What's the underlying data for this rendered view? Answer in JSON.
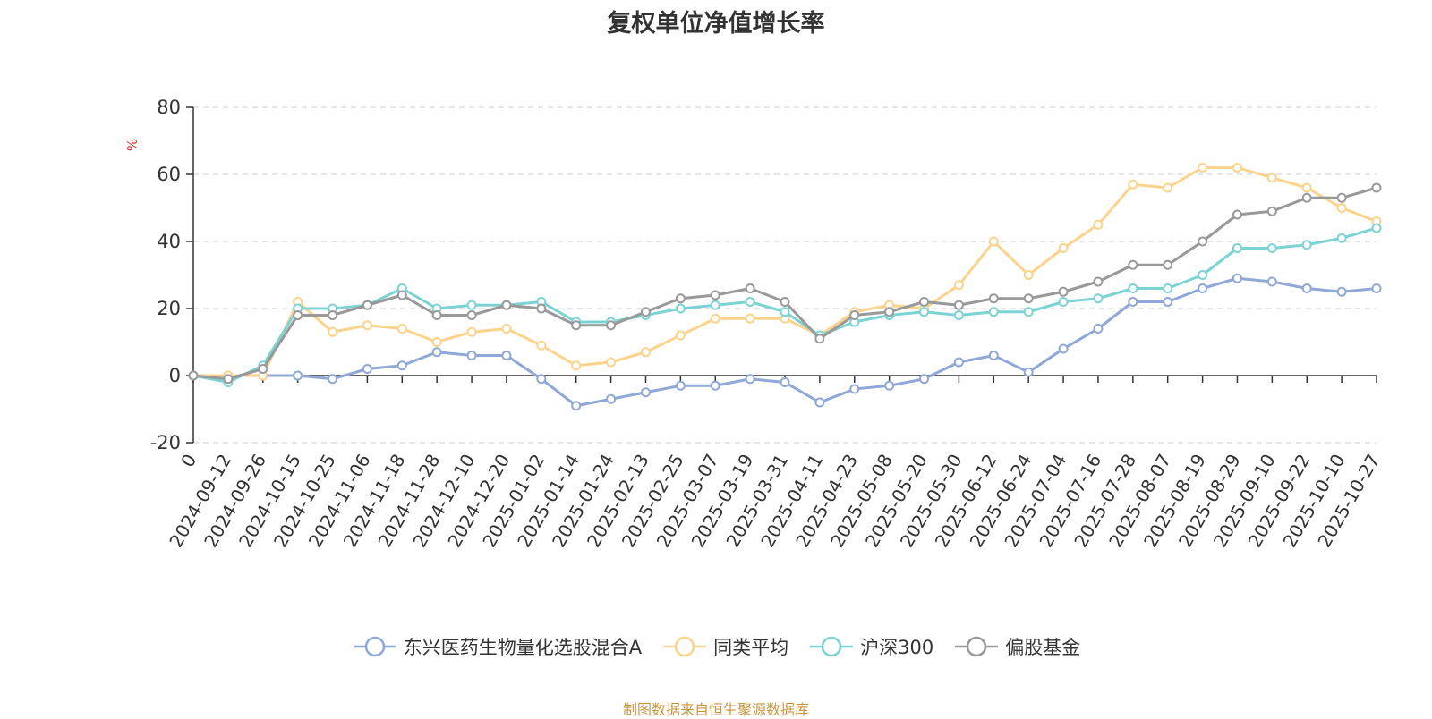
{
  "chart_data": {
    "type": "line",
    "title": "复权单位净值增长率",
    "ylabel": "%",
    "ylim": [
      -20,
      80
    ],
    "yticks": [
      -20,
      0,
      20,
      40,
      60,
      80
    ],
    "grid": true,
    "legend_position": "bottom",
    "x_tick_labels": [
      "0",
      "2024-09-12",
      "2024-09-26",
      "2024-10-15",
      "2024-10-25",
      "2024-11-06",
      "2024-11-18",
      "2024-11-28",
      "2024-12-10",
      "2024-12-20",
      "2025-01-02",
      "2025-01-14",
      "2025-01-24",
      "2025-02-13",
      "2025-02-25",
      "2025-03-07",
      "2025-03-19",
      "2025-03-31",
      "2025-04-11",
      "2025-04-23",
      "2025-05-08",
      "2025-05-20",
      "2025-05-30",
      "2025-06-12",
      "2025-06-24",
      "2025-07-04",
      "2025-07-16",
      "2025-07-28",
      "2025-08-07",
      "2025-08-19",
      "2025-08-29",
      "2025-09-10",
      "2025-09-22",
      "2025-10-10",
      "2025-10-27"
    ],
    "x_positions": [
      0,
      1,
      2,
      3,
      4,
      5,
      6,
      7,
      8,
      9,
      10,
      11,
      12,
      13,
      14,
      15,
      16,
      17,
      18,
      19,
      20,
      21,
      22,
      23,
      24,
      25,
      26,
      27,
      28,
      29,
      30,
      31,
      32,
      33,
      34
    ],
    "series": [
      {
        "name": "东兴医药生物量化选股混合A",
        "color": "#8fa8d8",
        "values": [
          0,
          0,
          0,
          0,
          -1,
          2,
          3,
          7,
          6,
          6,
          -1,
          -9,
          -7,
          -5,
          -3,
          -3,
          -1,
          -2,
          -8,
          -4,
          -3,
          -1,
          4,
          6,
          1,
          8,
          14,
          22,
          22,
          26,
          29,
          28,
          26,
          25,
          26
        ]
      },
      {
        "name": "同类平均",
        "color": "#fbd38d",
        "values": [
          0,
          0,
          0,
          22,
          13,
          15,
          14,
          10,
          13,
          14,
          9,
          3,
          4,
          7,
          12,
          17,
          17,
          17,
          12,
          19,
          21,
          20,
          27,
          40,
          30,
          38,
          45,
          57,
          56,
          62,
          62,
          59,
          56,
          50,
          46
        ]
      },
      {
        "name": "沪深300",
        "color": "#7dd3d3",
        "values": [
          0,
          -2,
          3,
          20,
          20,
          21,
          26,
          20,
          21,
          21,
          22,
          16,
          16,
          18,
          20,
          21,
          22,
          19,
          12,
          16,
          18,
          19,
          18,
          19,
          19,
          22,
          23,
          26,
          26,
          30,
          38,
          38,
          39,
          41,
          44
        ]
      },
      {
        "name": "偏股基金",
        "color": "#999999",
        "values": [
          0,
          -1,
          2,
          18,
          18,
          21,
          24,
          18,
          18,
          21,
          20,
          15,
          15,
          19,
          23,
          24,
          26,
          22,
          11,
          18,
          19,
          22,
          21,
          23,
          23,
          25,
          28,
          33,
          33,
          40,
          48,
          49,
          53,
          53,
          56
        ]
      }
    ]
  },
  "source_text": "制图数据来自恒生聚源数据库"
}
